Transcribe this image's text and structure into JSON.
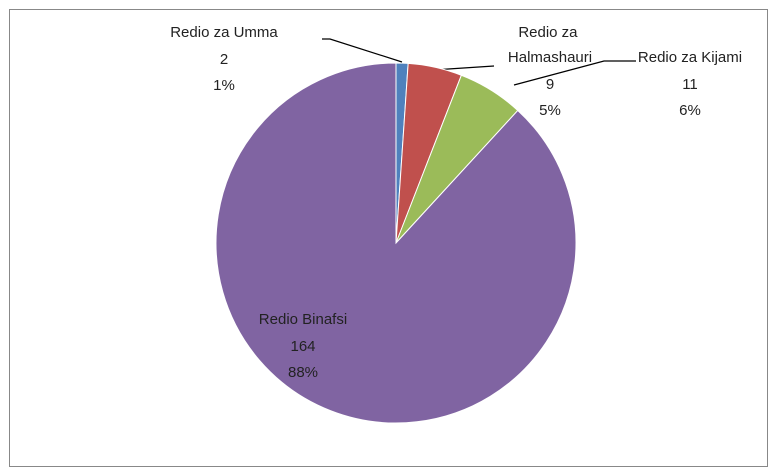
{
  "chart_data": {
    "type": "pie",
    "categories": [
      "Redio za Umma",
      "Redio za Halmashauri",
      "Redio za Kijami",
      "Redio Binafsi"
    ],
    "values": [
      2,
      9,
      11,
      164
    ],
    "percentages": [
      1,
      5,
      6,
      88
    ],
    "percentage_labels": [
      "1%",
      "5%",
      "6%",
      "88%"
    ],
    "colors": [
      "#4f81bd",
      "#c0504d",
      "#9bbb59",
      "#8064a2"
    ]
  }
}
